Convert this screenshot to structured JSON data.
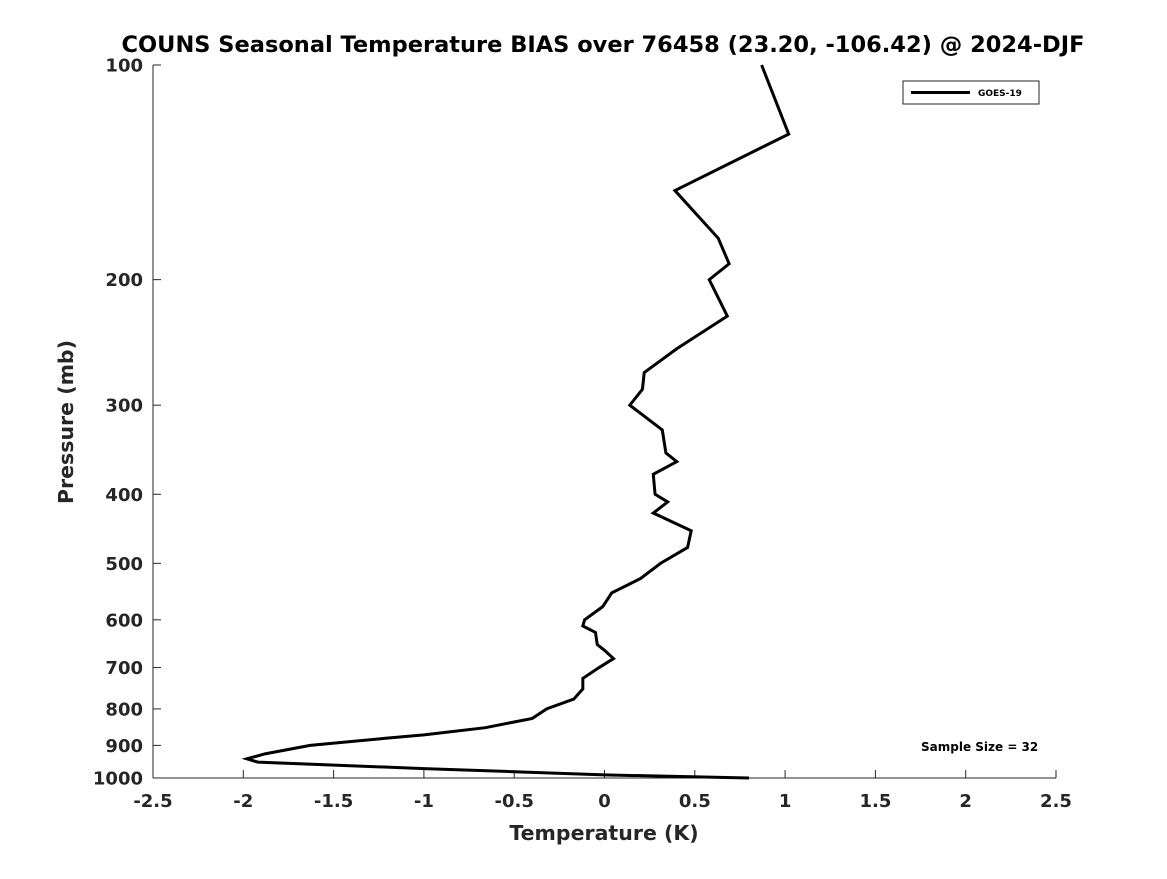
{
  "chart_data": {
    "type": "line",
    "title": "COUNS Seasonal Temperature BIAS over 76458 (23.20, -106.42) @ 2024-DJF",
    "xlabel": "Temperature (K)",
    "ylabel": "Pressure (mb)",
    "xlim": [
      -2.5,
      2.5
    ],
    "ylim": [
      100,
      1000
    ],
    "yscale": "log",
    "yreversed": true,
    "grid": false,
    "xticks": [
      -2.5,
      -2,
      -1.5,
      -1,
      -0.5,
      0,
      0.5,
      1,
      1.5,
      2,
      2.5
    ],
    "xtick_labels": [
      "-2.5",
      "-2",
      "-1.5",
      "-1",
      "-0.5",
      "0",
      "0.5",
      "1",
      "1.5",
      "2",
      "2.5"
    ],
    "yticks": [
      100,
      200,
      300,
      400,
      500,
      600,
      700,
      800,
      900,
      1000
    ],
    "ytick_labels": [
      "100",
      "200",
      "300",
      "400",
      "500",
      "600",
      "700",
      "800",
      "900",
      "1000"
    ],
    "legend_position": "top-right",
    "annotation": "Sample Size = 32",
    "series": [
      {
        "name": "GOES-19",
        "color": "#000000",
        "points": [
          [
            0.87,
            100
          ],
          [
            1.02,
            125
          ],
          [
            0.39,
            150
          ],
          [
            0.63,
            175
          ],
          [
            0.69,
            190
          ],
          [
            0.58,
            200
          ],
          [
            0.68,
            225
          ],
          [
            0.4,
            250
          ],
          [
            0.22,
            270
          ],
          [
            0.21,
            285
          ],
          [
            0.14,
            300
          ],
          [
            0.32,
            325
          ],
          [
            0.34,
            350
          ],
          [
            0.4,
            360
          ],
          [
            0.27,
            375
          ],
          [
            0.28,
            400
          ],
          [
            0.35,
            410
          ],
          [
            0.27,
            425
          ],
          [
            0.48,
            450
          ],
          [
            0.46,
            475
          ],
          [
            0.31,
            500
          ],
          [
            0.2,
            525
          ],
          [
            0.04,
            550
          ],
          [
            -0.01,
            575
          ],
          [
            -0.11,
            600
          ],
          [
            -0.12,
            612
          ],
          [
            -0.05,
            625
          ],
          [
            -0.04,
            650
          ],
          [
            0.0,
            662
          ],
          [
            0.05,
            680
          ],
          [
            -0.03,
            700
          ],
          [
            -0.12,
            725
          ],
          [
            -0.12,
            750
          ],
          [
            -0.17,
            775
          ],
          [
            -0.32,
            800
          ],
          [
            -0.4,
            825
          ],
          [
            -0.66,
            850
          ],
          [
            -1.0,
            870
          ],
          [
            -1.22,
            880
          ],
          [
            -1.63,
            900
          ],
          [
            -1.88,
            925
          ],
          [
            -1.98,
            940
          ],
          [
            -1.92,
            950
          ],
          [
            -1.0,
            970
          ],
          [
            -0.5,
            980
          ],
          [
            0.0,
            990
          ],
          [
            0.8,
            1000
          ]
        ]
      }
    ]
  }
}
